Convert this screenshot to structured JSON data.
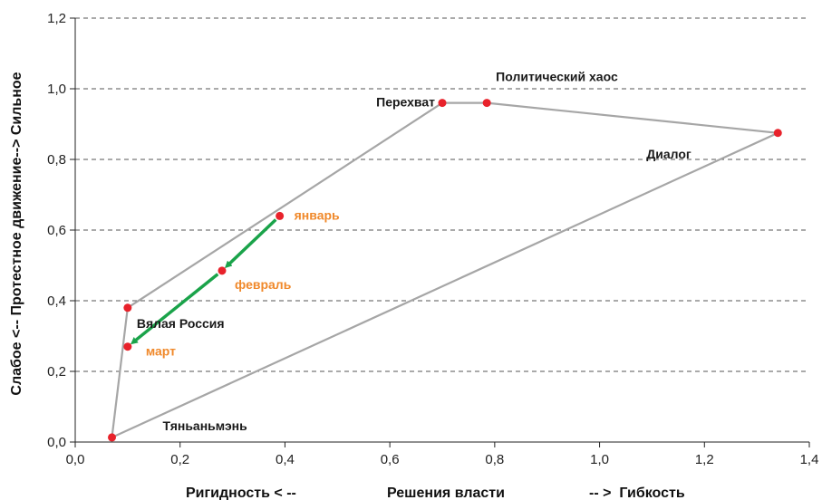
{
  "chart_data": {
    "type": "scatter",
    "xlim": [
      0.0,
      1.4
    ],
    "ylim": [
      0.0,
      1.2
    ],
    "x_ticks": [
      "0,0",
      "0,2",
      "0,4",
      "0,6",
      "0,8",
      "1,0",
      "1,2",
      "1,4"
    ],
    "y_ticks": [
      "0,0",
      "0,2",
      "0,4",
      "0,6",
      "0,8",
      "1,0",
      "1,2"
    ],
    "grid": "horizontal dashed",
    "ylabel": "Слабое <-- Протестное движение--> Сильное",
    "xlabel_parts": [
      "Ригидность < --",
      "Решения власти",
      "-- >  Гибкость"
    ],
    "scenarios": [
      {
        "name": "Тяньаньмэнь",
        "x": 0.07,
        "y": 0.013
      },
      {
        "name": "Вялая Россия",
        "x": 0.1,
        "y": 0.38
      },
      {
        "name": "Перехват",
        "x": 0.7,
        "y": 0.96
      },
      {
        "name": "Политический хаос",
        "x": 0.785,
        "y": 0.96
      },
      {
        "name": "Диалог",
        "x": 1.34,
        "y": 0.875
      }
    ],
    "polygon_order": [
      "Тяньаньмэнь",
      "Вялая Россия",
      "Перехват",
      "Политический хаос",
      "Диалог",
      "Тяньаньмэнь"
    ],
    "trajectory": [
      {
        "name": "январь",
        "x": 0.39,
        "y": 0.64
      },
      {
        "name": "февраль",
        "x": 0.28,
        "y": 0.485
      },
      {
        "name": "март",
        "x": 0.1,
        "y": 0.27
      }
    ],
    "colors": {
      "points": "#e8222b",
      "polygon": "#a6a6a6",
      "arrow": "#1aa34a",
      "month_labels": "#f0892b",
      "grid": "#555555"
    }
  }
}
